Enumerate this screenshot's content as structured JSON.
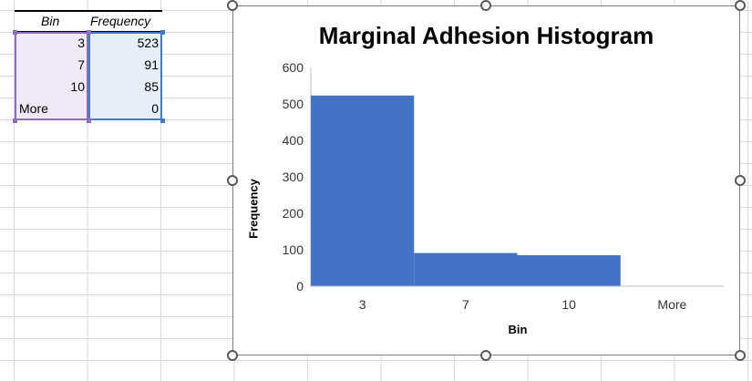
{
  "table": {
    "headers": [
      "Bin",
      "Frequency"
    ],
    "rows": [
      {
        "bin": "3",
        "frequency": "523"
      },
      {
        "bin": "7",
        "frequency": "91"
      },
      {
        "bin": "10",
        "frequency": "85"
      },
      {
        "bin": "More",
        "frequency": "0"
      }
    ]
  },
  "chart_data": {
    "type": "bar",
    "title": "Marginal Adhesion Histogram",
    "xlabel": "Bin",
    "ylabel": "Frequency",
    "categories": [
      "3",
      "7",
      "10",
      "More"
    ],
    "values": [
      523,
      91,
      85,
      0
    ],
    "ylim": [
      0,
      600
    ],
    "yticks": [
      "0",
      "100",
      "200",
      "300",
      "400",
      "500",
      "600"
    ],
    "color": "#4472c4",
    "grid": false,
    "legend": "none"
  },
  "colors": {
    "bin_selection": "#8e6dbf",
    "frequency_selection": "#3d7bc6",
    "bar": "#4472c4"
  }
}
